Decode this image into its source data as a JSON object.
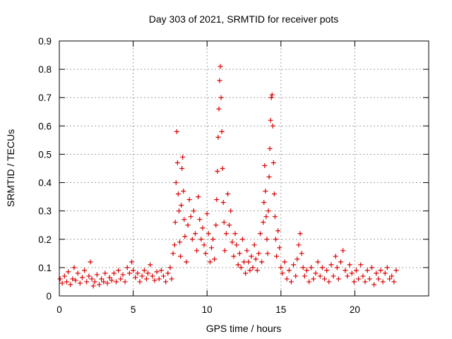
{
  "chart_data": {
    "type": "scatter",
    "title": "Day 303 of 2021, SRMTID for receiver pots",
    "xlabel": "GPS time / hours",
    "ylabel": "SRMTID / TECUs",
    "xlim": [
      0,
      25
    ],
    "ylim": [
      0,
      0.9
    ],
    "x_ticks": [
      0,
      5,
      10,
      15,
      20
    ],
    "x_tick_labels": [
      "0",
      "5",
      "10",
      "15",
      "20"
    ],
    "y_ticks": [
      0,
      0.1,
      0.2,
      0.3,
      0.4,
      0.5,
      0.6,
      0.7,
      0.8,
      0.9
    ],
    "y_tick_labels": [
      "0",
      "0.1",
      "0.2",
      "0.3",
      "0.4",
      "0.5",
      "0.6",
      "0.7",
      "0.8",
      "0.9"
    ],
    "grid": true,
    "marker": "+",
    "series": [
      {
        "name": "SRMTID",
        "color": "#dd0000",
        "points": [
          [
            0.05,
            0.06
          ],
          [
            0.2,
            0.045
          ],
          [
            0.35,
            0.07
          ],
          [
            0.5,
            0.05
          ],
          [
            0.6,
            0.085
          ],
          [
            0.75,
            0.04
          ],
          [
            0.9,
            0.06
          ],
          [
            1.0,
            0.1
          ],
          [
            1.1,
            0.055
          ],
          [
            1.25,
            0.08
          ],
          [
            1.4,
            0.045
          ],
          [
            1.55,
            0.065
          ],
          [
            1.7,
            0.09
          ],
          [
            1.85,
            0.05
          ],
          [
            2.0,
            0.07
          ],
          [
            2.1,
            0.12
          ],
          [
            2.2,
            0.06
          ],
          [
            2.3,
            0.035
          ],
          [
            2.4,
            0.05
          ],
          [
            2.55,
            0.075
          ],
          [
            2.7,
            0.04
          ],
          [
            2.85,
            0.06
          ],
          [
            3.0,
            0.05
          ],
          [
            3.1,
            0.08
          ],
          [
            3.25,
            0.045
          ],
          [
            3.4,
            0.065
          ],
          [
            3.55,
            0.055
          ],
          [
            3.7,
            0.08
          ],
          [
            3.85,
            0.05
          ],
          [
            4.0,
            0.09
          ],
          [
            4.15,
            0.06
          ],
          [
            4.3,
            0.075
          ],
          [
            4.45,
            0.05
          ],
          [
            4.6,
            0.1
          ],
          [
            4.75,
            0.08
          ],
          [
            4.9,
            0.12
          ],
          [
            5.0,
            0.09
          ],
          [
            5.15,
            0.065
          ],
          [
            5.3,
            0.08
          ],
          [
            5.45,
            0.05
          ],
          [
            5.6,
            0.07
          ],
          [
            5.75,
            0.09
          ],
          [
            5.9,
            0.06
          ],
          [
            6.0,
            0.08
          ],
          [
            6.15,
            0.11
          ],
          [
            6.3,
            0.07
          ],
          [
            6.45,
            0.055
          ],
          [
            6.6,
            0.085
          ],
          [
            6.75,
            0.06
          ],
          [
            6.9,
            0.09
          ],
          [
            7.05,
            0.07
          ],
          [
            7.2,
            0.05
          ],
          [
            7.35,
            0.08
          ],
          [
            7.5,
            0.1
          ],
          [
            7.6,
            0.06
          ],
          [
            7.7,
            0.15
          ],
          [
            7.8,
            0.18
          ],
          [
            7.85,
            0.26
          ],
          [
            7.9,
            0.4
          ],
          [
            7.95,
            0.58
          ],
          [
            8.0,
            0.47
          ],
          [
            8.05,
            0.36
          ],
          [
            8.1,
            0.3
          ],
          [
            8.15,
            0.19
          ],
          [
            8.2,
            0.14
          ],
          [
            8.25,
            0.32
          ],
          [
            8.3,
            0.45
          ],
          [
            8.35,
            0.49
          ],
          [
            8.4,
            0.37
          ],
          [
            8.45,
            0.27
          ],
          [
            8.5,
            0.21
          ],
          [
            8.6,
            0.12
          ],
          [
            8.7,
            0.25
          ],
          [
            8.8,
            0.34
          ],
          [
            8.9,
            0.28
          ],
          [
            9.0,
            0.2
          ],
          [
            9.1,
            0.3
          ],
          [
            9.2,
            0.22
          ],
          [
            9.3,
            0.16
          ],
          [
            9.4,
            0.35
          ],
          [
            9.5,
            0.27
          ],
          [
            9.6,
            0.2
          ],
          [
            9.7,
            0.24
          ],
          [
            9.8,
            0.18
          ],
          [
            9.9,
            0.15
          ],
          [
            10.0,
            0.29
          ],
          [
            10.1,
            0.22
          ],
          [
            10.2,
            0.12
          ],
          [
            10.3,
            0.17
          ],
          [
            10.4,
            0.2
          ],
          [
            10.5,
            0.13
          ],
          [
            10.6,
            0.25
          ],
          [
            10.65,
            0.34
          ],
          [
            10.7,
            0.44
          ],
          [
            10.75,
            0.56
          ],
          [
            10.8,
            0.66
          ],
          [
            10.85,
            0.76
          ],
          [
            10.9,
            0.81
          ],
          [
            10.95,
            0.7
          ],
          [
            11.0,
            0.58
          ],
          [
            11.05,
            0.45
          ],
          [
            11.1,
            0.33
          ],
          [
            11.15,
            0.26
          ],
          [
            11.2,
            0.16
          ],
          [
            11.3,
            0.22
          ],
          [
            11.4,
            0.36
          ],
          [
            11.5,
            0.25
          ],
          [
            11.6,
            0.3
          ],
          [
            11.7,
            0.19
          ],
          [
            11.8,
            0.14
          ],
          [
            11.9,
            0.22
          ],
          [
            12.0,
            0.18
          ],
          [
            12.1,
            0.11
          ],
          [
            12.2,
            0.15
          ],
          [
            12.3,
            0.1
          ],
          [
            12.4,
            0.2
          ],
          [
            12.5,
            0.12
          ],
          [
            12.6,
            0.08
          ],
          [
            12.7,
            0.16
          ],
          [
            12.8,
            0.12
          ],
          [
            12.9,
            0.09
          ],
          [
            13.0,
            0.14
          ],
          [
            13.1,
            0.1
          ],
          [
            13.2,
            0.18
          ],
          [
            13.3,
            0.13
          ],
          [
            13.4,
            0.09
          ],
          [
            13.5,
            0.15
          ],
          [
            13.6,
            0.22
          ],
          [
            13.7,
            0.12
          ],
          [
            13.8,
            0.26
          ],
          [
            13.85,
            0.33
          ],
          [
            13.9,
            0.46
          ],
          [
            13.95,
            0.37
          ],
          [
            14.0,
            0.28
          ],
          [
            14.05,
            0.2
          ],
          [
            14.1,
            0.15
          ],
          [
            14.15,
            0.3
          ],
          [
            14.2,
            0.42
          ],
          [
            14.25,
            0.52
          ],
          [
            14.3,
            0.62
          ],
          [
            14.35,
            0.7
          ],
          [
            14.4,
            0.71
          ],
          [
            14.45,
            0.6
          ],
          [
            14.5,
            0.47
          ],
          [
            14.55,
            0.36
          ],
          [
            14.6,
            0.28
          ],
          [
            14.65,
            0.2
          ],
          [
            14.7,
            0.14
          ],
          [
            14.8,
            0.23
          ],
          [
            14.9,
            0.17
          ],
          [
            15.0,
            0.1
          ],
          [
            15.1,
            0.08
          ],
          [
            15.25,
            0.12
          ],
          [
            15.4,
            0.06
          ],
          [
            15.55,
            0.09
          ],
          [
            15.7,
            0.05
          ],
          [
            15.85,
            0.11
          ],
          [
            16.0,
            0.07
          ],
          [
            16.1,
            0.13
          ],
          [
            16.2,
            0.18
          ],
          [
            16.3,
            0.22
          ],
          [
            16.4,
            0.15
          ],
          [
            16.5,
            0.1
          ],
          [
            16.6,
            0.07
          ],
          [
            16.75,
            0.09
          ],
          [
            16.9,
            0.05
          ],
          [
            17.05,
            0.1
          ],
          [
            17.2,
            0.06
          ],
          [
            17.35,
            0.08
          ],
          [
            17.5,
            0.12
          ],
          [
            17.65,
            0.07
          ],
          [
            17.8,
            0.1
          ],
          [
            17.95,
            0.06
          ],
          [
            18.1,
            0.09
          ],
          [
            18.25,
            0.05
          ],
          [
            18.4,
            0.11
          ],
          [
            18.55,
            0.07
          ],
          [
            18.7,
            0.14
          ],
          [
            18.8,
            0.1
          ],
          [
            18.9,
            0.06
          ],
          [
            19.05,
            0.12
          ],
          [
            19.2,
            0.16
          ],
          [
            19.35,
            0.09
          ],
          [
            19.5,
            0.07
          ],
          [
            19.65,
            0.11
          ],
          [
            19.8,
            0.08
          ],
          [
            19.95,
            0.05
          ],
          [
            20.1,
            0.09
          ],
          [
            20.25,
            0.06
          ],
          [
            20.4,
            0.11
          ],
          [
            20.55,
            0.07
          ],
          [
            20.7,
            0.05
          ],
          [
            20.85,
            0.09
          ],
          [
            21.0,
            0.06
          ],
          [
            21.15,
            0.1
          ],
          [
            21.3,
            0.04
          ],
          [
            21.45,
            0.08
          ],
          [
            21.6,
            0.06
          ],
          [
            21.75,
            0.09
          ],
          [
            21.9,
            0.05
          ],
          [
            22.05,
            0.08
          ],
          [
            22.2,
            0.1
          ],
          [
            22.35,
            0.06
          ],
          [
            22.5,
            0.07
          ],
          [
            22.65,
            0.05
          ],
          [
            22.8,
            0.09
          ]
        ]
      }
    ]
  }
}
